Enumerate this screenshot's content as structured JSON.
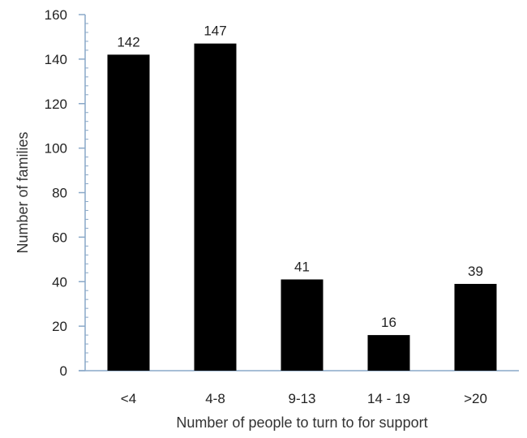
{
  "chart_data": {
    "type": "bar",
    "categories": [
      "<4",
      "4-8",
      "9-13",
      "14 - 19",
      ">20"
    ],
    "values": [
      142,
      147,
      41,
      16,
      39
    ],
    "data_labels": [
      "142",
      "147",
      "41",
      "16",
      "39"
    ],
    "title": "",
    "xlabel": "Number of people to turn to for support",
    "ylabel": "Number of families",
    "ylim": [
      0,
      160
    ],
    "yticks": [
      0,
      20,
      40,
      60,
      80,
      100,
      120,
      140,
      160
    ],
    "ytick_labels": [
      "0",
      "20",
      "40",
      "60",
      "80",
      "100",
      "120",
      "140",
      "160"
    ],
    "minor_ticks_per_major": 5,
    "grid": false,
    "legend": "none",
    "bar_color": "#000000",
    "axis_color": "#8aa8c8"
  }
}
